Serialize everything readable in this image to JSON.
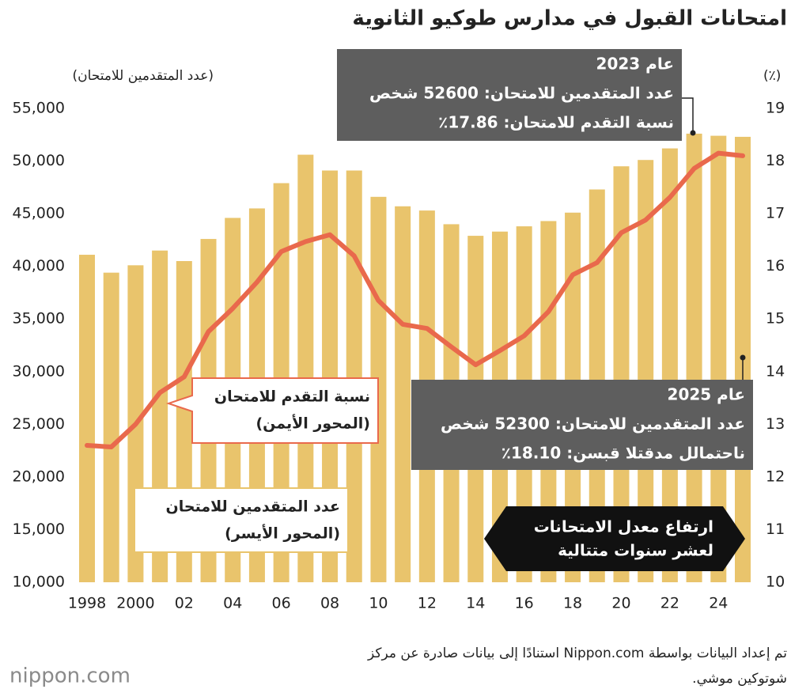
{
  "chart_data": {
    "type": "bar_line",
    "title": "امتحانات القبول في مدارس طوكيو الثانوية",
    "y_label": "(عدد المتقدمين للامتحان)",
    "y2_label": "(٪)",
    "categories": [
      "1998",
      null,
      "2000",
      null,
      "02",
      null,
      "04",
      null,
      "06",
      null,
      "08",
      null,
      "10",
      null,
      "12",
      null,
      "14",
      null,
      "16",
      null,
      "18",
      null,
      "20",
      null,
      "22",
      null,
      "24",
      null
    ],
    "series": [
      {
        "name": "عدد المتقدمين للامتحان",
        "axis_note": "(المحور الأيسر)",
        "type": "bar",
        "color": "#e9c46c",
        "values": [
          41100,
          39400,
          40100,
          41500,
          40500,
          42600,
          44600,
          45500,
          47900,
          50600,
          49100,
          49100,
          46600,
          45700,
          45300,
          44000,
          42900,
          43300,
          43800,
          44300,
          45100,
          47300,
          49500,
          50100,
          51200,
          52600,
          52400,
          52300
        ]
      },
      {
        "name": "نسبة التقدم للامتحان",
        "axis_note": "(المحور الأيمن)",
        "type": "line",
        "axis": "y2",
        "color": "#e9694c",
        "values": [
          12.6,
          12.57,
          13.0,
          13.6,
          13.9,
          14.76,
          15.2,
          15.7,
          16.28,
          16.47,
          16.6,
          16.2,
          15.35,
          14.9,
          14.82,
          14.47,
          14.13,
          14.4,
          14.68,
          15.14,
          15.84,
          16.07,
          16.64,
          16.88,
          17.31,
          17.86,
          18.15,
          18.1
        ]
      }
    ],
    "ylim": [
      10000,
      55000
    ],
    "yticks": [
      {
        "value": 10000,
        "label": "10,000"
      },
      {
        "value": 15000,
        "label": "15,000"
      },
      {
        "value": 20000,
        "label": "20,000"
      },
      {
        "value": 25000,
        "label": "25,000"
      },
      {
        "value": 30000,
        "label": "30,000"
      },
      {
        "value": 35000,
        "label": "35,000"
      },
      {
        "value": 40000,
        "label": "40,000"
      },
      {
        "value": 45000,
        "label": "45,000"
      },
      {
        "value": 50000,
        "label": "50,000"
      },
      {
        "value": 55000,
        "label": "55,000"
      }
    ],
    "y2lim": [
      10,
      19
    ],
    "y2ticks": [
      10,
      11,
      12,
      13,
      14,
      15,
      16,
      17,
      18,
      19
    ],
    "grid": false,
    "annotations": [
      {
        "lines": [
          "عام 2023",
          "عدد المتقدمين للامتحان: 52600 شخص",
          "نسبة التقدم للامتحان: 17.86٪"
        ]
      },
      {
        "lines": [
          "عام 2025",
          "عدد المتقدمين للامتحان: 52300 شخص",
          "ناحتمالل مدقتلا قبسن: 18.10٪"
        ]
      },
      {
        "lines": [
          "ارتفاع معدل الامتحانات",
          "لعشر سنوات متتالية"
        ]
      }
    ],
    "source": [
      "تم إعداد البيانات بواسطة Nippon.com  استنادًا إلى بيانات صادرة عن مركز",
      "شوتوكين موشي."
    ],
    "logo": "nippon.com"
  }
}
